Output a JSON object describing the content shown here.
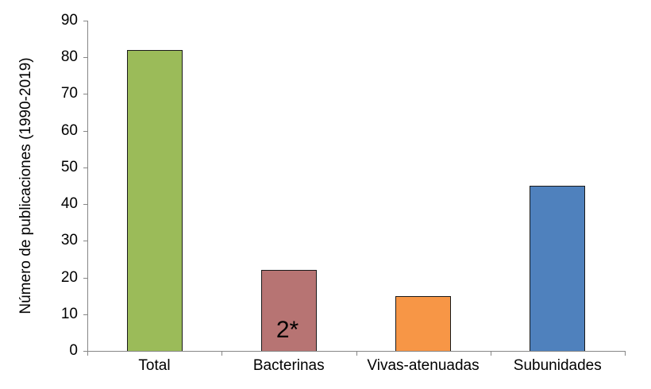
{
  "chart_data": {
    "type": "bar",
    "title": "",
    "xlabel": "",
    "ylabel": "Número de publicaciones (1990-2019)",
    "ylim": [
      0,
      90
    ],
    "yticks": [
      0,
      10,
      20,
      30,
      40,
      50,
      60,
      70,
      80,
      90
    ],
    "categories": [
      "Total",
      "Bacterinas",
      "Vivas-atenuadas",
      "Subunidades"
    ],
    "values": [
      82,
      22,
      15,
      45
    ],
    "colors": [
      "#9bbb59",
      "#b77473",
      "#f79646",
      "#4f81bd"
    ],
    "grid": false,
    "legend": null,
    "annotations": [
      {
        "category": "Bacterinas",
        "text": "2*"
      }
    ]
  }
}
